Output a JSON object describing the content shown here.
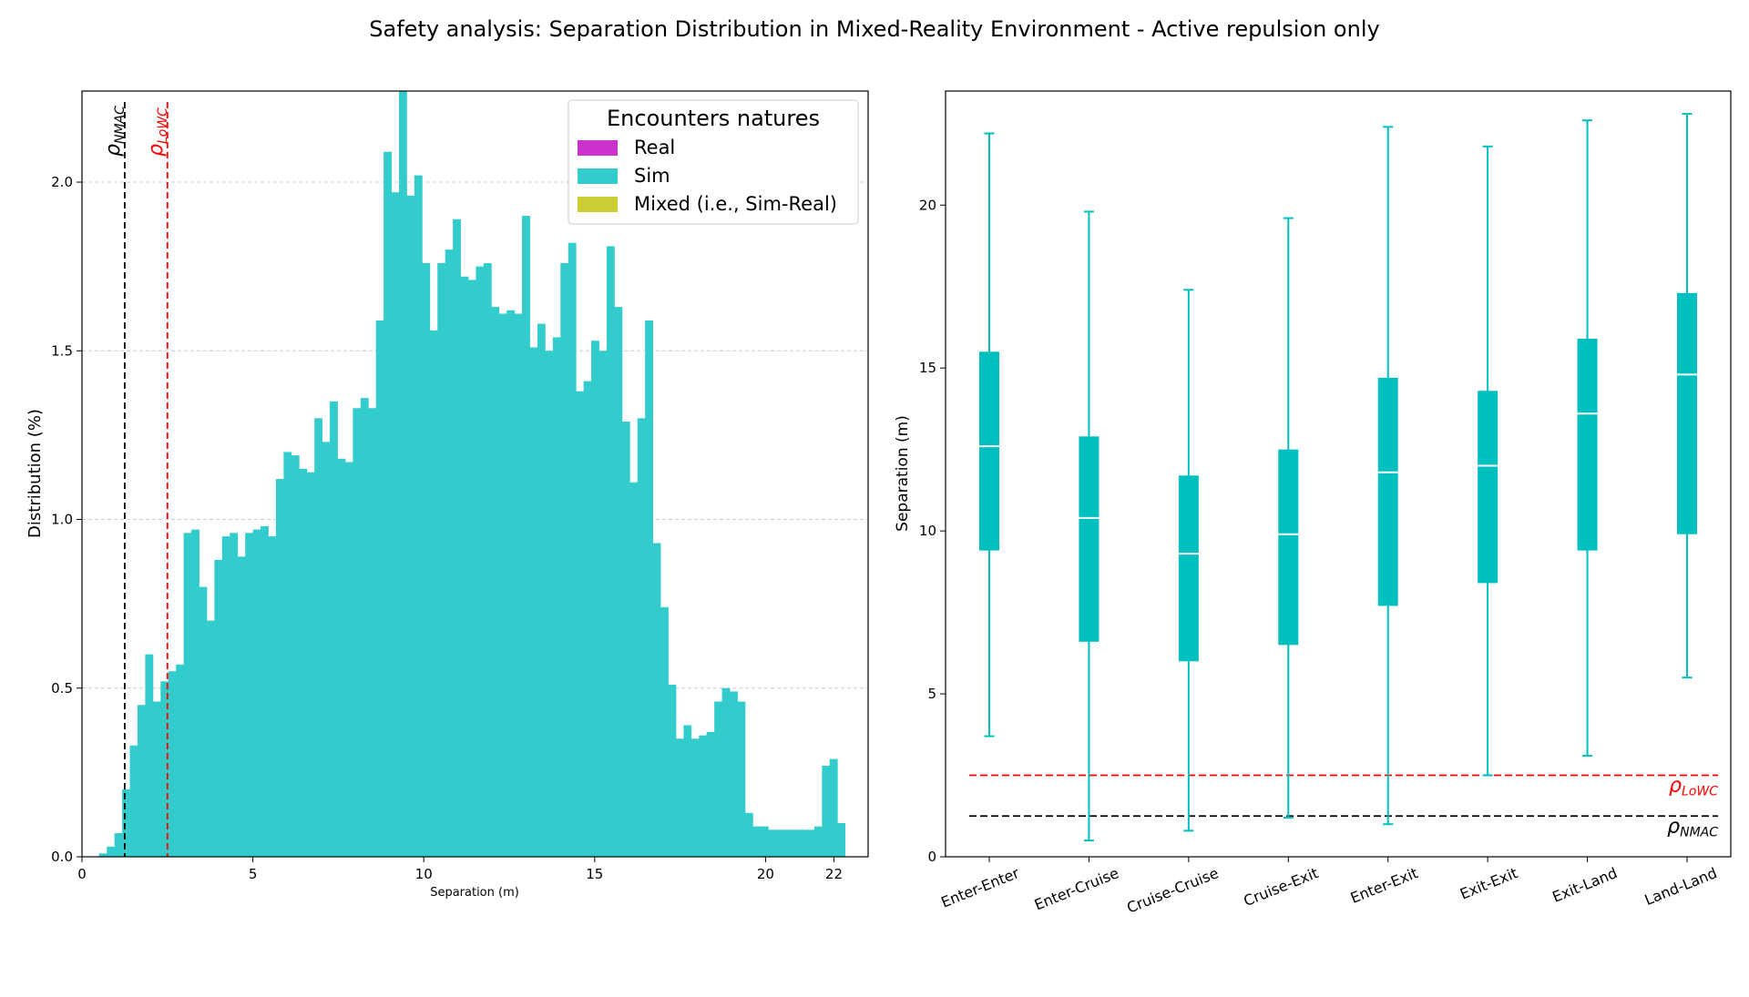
{
  "figure_title": "Safety analysis: Separation Distribution in Mixed-Reality Environment - Active repulsion only",
  "colors": {
    "real": "#cc33cc",
    "sim": "#33cccc",
    "mixed": "#cccc33",
    "box": "#00bfbf",
    "lowc": "#ff0000",
    "nmac": "#000000"
  },
  "chart_data": [
    {
      "type": "bar",
      "subtype": "histogram",
      "xlabel": "Separation (m)",
      "ylabel": "Distribution (%)",
      "xlim": [
        0,
        23
      ],
      "ylim": [
        0,
        2.27
      ],
      "xticks": [
        0,
        5,
        10,
        15,
        20,
        22
      ],
      "yticks": [
        0.0,
        0.5,
        1.0,
        1.5,
        2.0
      ],
      "grid": "y-dashed",
      "legend": {
        "title": "Encounters natures",
        "position": "top-right",
        "entries": [
          "Real",
          "Sim",
          "Mixed (i.e., Sim-Real)"
        ]
      },
      "thresholds": [
        {
          "label": "ρ",
          "sub": "NMAC",
          "x": 1.25,
          "color": "#000000"
        },
        {
          "label": "ρ",
          "sub": "LoWC",
          "x": 2.5,
          "color": "#ff0000"
        }
      ],
      "bin_start": 0.5,
      "bin_width": 0.225,
      "series": [
        {
          "name": "Sim",
          "values": [
            0.01,
            0.03,
            0.07,
            0.2,
            0.33,
            0.45,
            0.6,
            0.46,
            0.52,
            0.55,
            0.57,
            0.96,
            0.97,
            0.8,
            0.7,
            0.88,
            0.95,
            0.96,
            0.89,
            0.96,
            0.97,
            0.98,
            0.95,
            1.12,
            1.2,
            1.19,
            1.15,
            1.14,
            1.3,
            1.23,
            1.35,
            1.18,
            1.17,
            1.33,
            1.36,
            1.33,
            1.59,
            2.09,
            1.97,
            2.27,
            1.96,
            2.02,
            1.76,
            1.56,
            1.76,
            1.8,
            1.89,
            1.72,
            1.71,
            1.75,
            1.76,
            1.63,
            1.61,
            1.62,
            1.61,
            1.9,
            1.51,
            1.58,
            1.5,
            1.54,
            1.76,
            1.82,
            1.38,
            1.41,
            1.53,
            1.5,
            1.81,
            1.63,
            1.29,
            1.11,
            1.3,
            1.59,
            0.93,
            0.74,
            0.51,
            0.35,
            0.39,
            0.35,
            0.36,
            0.37,
            0.46,
            0.5,
            0.49,
            0.46,
            0.13,
            0.09,
            0.09,
            0.08,
            0.08,
            0.08,
            0.08,
            0.08,
            0.08,
            0.09,
            0.27,
            0.29,
            0.1
          ]
        }
      ]
    },
    {
      "type": "box",
      "ylabel": "Separation (m)",
      "ylim": [
        0,
        23.5
      ],
      "yticks": [
        0,
        5,
        10,
        15,
        20
      ],
      "categories": [
        "Enter-Enter",
        "Enter-Cruise",
        "Cruise-Cruise",
        "Cruise-Exit",
        "Enter-Exit",
        "Exit-Exit",
        "Exit-Land",
        "Land-Land"
      ],
      "boxes": [
        {
          "min": 3.7,
          "q1": 9.4,
          "median": 12.6,
          "q3": 15.5,
          "max": 22.2
        },
        {
          "min": 0.5,
          "q1": 6.6,
          "median": 10.4,
          "q3": 12.9,
          "max": 19.8
        },
        {
          "min": 0.8,
          "q1": 6.0,
          "median": 9.3,
          "q3": 11.7,
          "max": 17.4
        },
        {
          "min": 1.2,
          "q1": 6.5,
          "median": 9.9,
          "q3": 12.5,
          "max": 19.6
        },
        {
          "min": 1.0,
          "q1": 7.7,
          "median": 11.8,
          "q3": 14.7,
          "max": 22.4
        },
        {
          "min": 2.5,
          "q1": 8.4,
          "median": 12.0,
          "q3": 14.3,
          "max": 21.8
        },
        {
          "min": 3.1,
          "q1": 9.4,
          "median": 13.6,
          "q3": 15.9,
          "max": 22.6
        },
        {
          "min": 5.5,
          "q1": 9.9,
          "median": 14.8,
          "q3": 17.3,
          "max": 22.8
        }
      ],
      "thresholds": [
        {
          "label": "ρ",
          "sub": "LoWC",
          "y": 2.5,
          "color": "#ff0000"
        },
        {
          "label": "ρ",
          "sub": "NMAC",
          "y": 1.25,
          "color": "#000000"
        }
      ]
    }
  ]
}
